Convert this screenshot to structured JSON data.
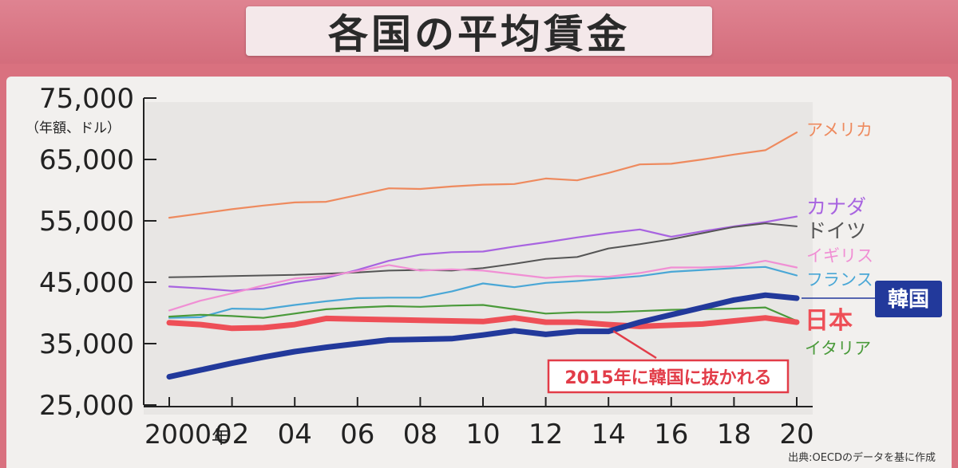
{
  "title": "各国の平均賃金",
  "source": "出典:OECDのデータを基に作成",
  "chart_data": {
    "type": "line",
    "yunit": "（年額、ドル）",
    "ylim": [
      25000,
      75000
    ],
    "yticks": [
      25000,
      35000,
      45000,
      55000,
      65000,
      75000
    ],
    "ytick_labels": [
      "25,000",
      "35,000",
      "45,000",
      "55,000",
      "65,000",
      "75,000"
    ],
    "x": [
      2000,
      2001,
      2002,
      2003,
      2004,
      2005,
      2006,
      2007,
      2008,
      2009,
      2010,
      2011,
      2012,
      2013,
      2014,
      2015,
      2016,
      2017,
      2018,
      2019,
      2020
    ],
    "xticks": [
      2000,
      2002,
      2004,
      2006,
      2008,
      2010,
      2012,
      2014,
      2016,
      2018,
      2020
    ],
    "xtick_labels": [
      "2000年",
      "02",
      "04",
      "06",
      "08",
      "10",
      "12",
      "14",
      "16",
      "18",
      "20"
    ],
    "grid": false,
    "series": [
      {
        "name": "アメリカ",
        "color": "#ee8a5e",
        "width": 2.2,
        "values": [
          55500,
          56200,
          56900,
          57500,
          58000,
          58100,
          59200,
          60300,
          60200,
          60600,
          60900,
          61000,
          61900,
          61600,
          62800,
          64200,
          64300,
          65000,
          65800,
          66500,
          69400
        ]
      },
      {
        "name": "カナダ",
        "color": "#a864e0",
        "width": 2.2,
        "values": [
          44300,
          44000,
          43600,
          44000,
          45000,
          45700,
          47000,
          48500,
          49500,
          49900,
          50000,
          50800,
          51500,
          52300,
          53000,
          53600,
          52400,
          53300,
          54100,
          54800,
          55700
        ]
      },
      {
        "name": "ドイツ",
        "color": "#555555",
        "width": 2.0,
        "values": [
          45800,
          45900,
          46000,
          46100,
          46200,
          46400,
          46600,
          46900,
          47000,
          46900,
          47300,
          48000,
          48800,
          49100,
          50500,
          51200,
          52000,
          53000,
          54000,
          54600,
          54100
        ]
      },
      {
        "name": "イギリス",
        "color": "#f08fd4",
        "width": 2.2,
        "values": [
          40400,
          42000,
          43200,
          44500,
          45600,
          46000,
          46800,
          47800,
          46900,
          47100,
          46900,
          46300,
          45700,
          46000,
          45900,
          46500,
          47400,
          47400,
          47600,
          48500,
          47400
        ]
      },
      {
        "name": "フランス",
        "color": "#4aa7d6",
        "width": 2.2,
        "values": [
          39200,
          39300,
          40700,
          40600,
          41300,
          41900,
          42400,
          42500,
          42500,
          43500,
          44800,
          44200,
          44900,
          45200,
          45600,
          46000,
          46700,
          47000,
          47300,
          47500,
          46100
        ]
      },
      {
        "name": "イタリア",
        "color": "#4a9a3a",
        "width": 2.2,
        "values": [
          39400,
          39700,
          39500,
          39200,
          39900,
          40600,
          40900,
          41100,
          41000,
          41200,
          41300,
          40600,
          39900,
          40100,
          40100,
          40300,
          40500,
          40600,
          40700,
          40900,
          38700
        ]
      },
      {
        "name": "日本",
        "color": "#ee4f57",
        "width": 7,
        "values": [
          38400,
          38100,
          37500,
          37600,
          38100,
          39100,
          39000,
          38900,
          38800,
          38700,
          38600,
          39200,
          38500,
          38500,
          38100,
          37800,
          38000,
          38200,
          38700,
          39200,
          38500
        ]
      },
      {
        "name": "韓国",
        "color": "#22399b",
        "width": 7,
        "values": [
          29600,
          30700,
          31800,
          32800,
          33700,
          34400,
          35000,
          35600,
          35700,
          35800,
          36400,
          37100,
          36500,
          37000,
          37000,
          38500,
          39700,
          40900,
          42100,
          42900,
          42400
        ]
      }
    ],
    "annotation": "2015年に韓国に抜かれる"
  }
}
